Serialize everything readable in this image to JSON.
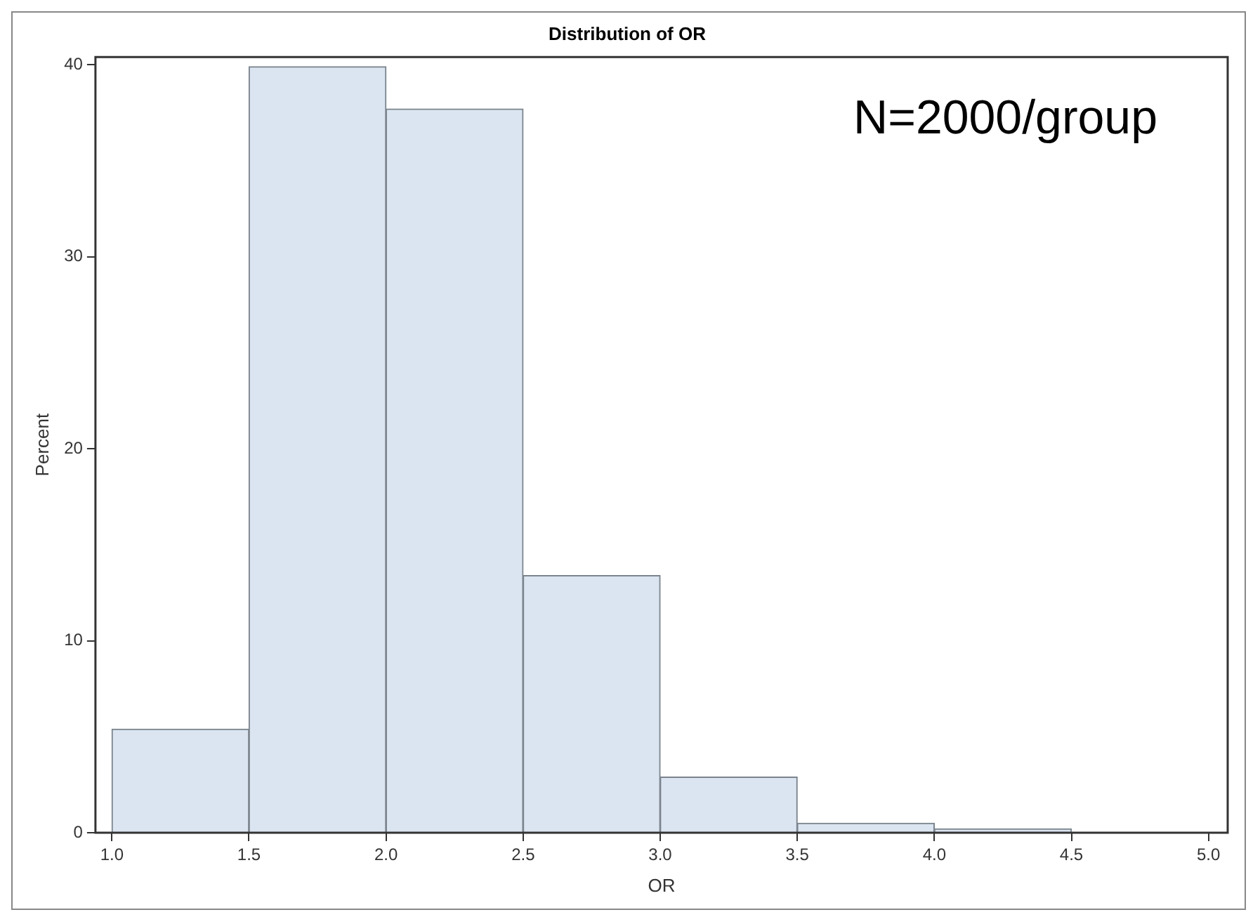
{
  "chart_data": {
    "type": "histogram",
    "title": "Distribution of OR",
    "xlabel": "OR",
    "ylabel": "Percent",
    "annotations": [
      "N=2000/group"
    ],
    "bins": [
      1.0,
      1.5,
      2.0,
      2.5,
      3.0,
      3.5,
      4.0,
      4.5,
      5.0
    ],
    "values": [
      5.4,
      39.9,
      37.7,
      13.4,
      2.9,
      0.5,
      0.2,
      0
    ],
    "color": "#dbe5f1",
    "xlim": [
      0.94,
      5.07
    ],
    "xticks": [
      {
        "value": 1,
        "label": "1.0"
      },
      {
        "value": 1.5,
        "label": "1.5"
      },
      {
        "value": 2,
        "label": "2.0"
      },
      {
        "value": 2.5,
        "label": "2.5"
      },
      {
        "value": 3,
        "label": "3.0"
      },
      {
        "value": 3.5,
        "label": "3.5"
      },
      {
        "value": 4,
        "label": "4.0"
      },
      {
        "value": 4.5,
        "label": "4.5"
      },
      {
        "value": 5,
        "label": "5.0"
      }
    ],
    "ylim": [
      0,
      40.4
    ],
    "yticks": [
      0,
      10,
      20,
      30,
      40
    ],
    "grid": false,
    "legend": false
  }
}
